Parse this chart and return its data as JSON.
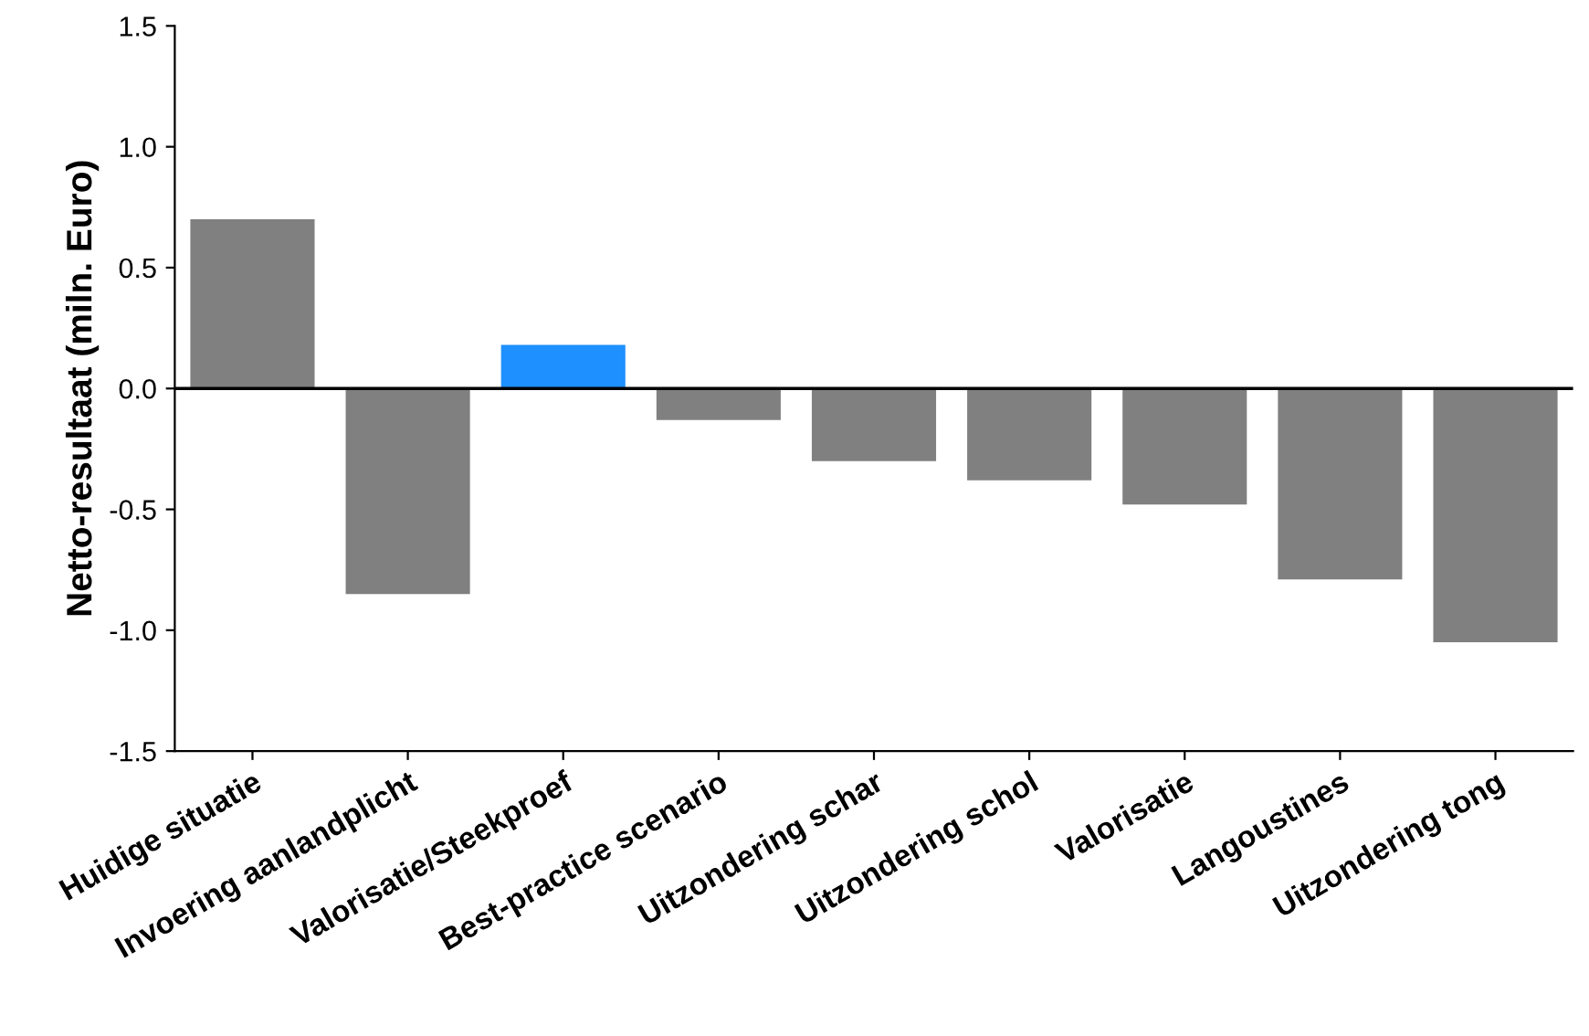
{
  "chart_data": {
    "type": "bar",
    "ylabel": "Netto-resultaat (miln. Euro)",
    "categories": [
      "Huidige situatie",
      "Invoering aanlandplicht",
      "Valorisatie/Steekproef",
      "Best-practice scenario",
      "Uitzondering schar",
      "Uitzondering schol",
      "Valorisatie",
      "Langoustines",
      "Uitzondering tong"
    ],
    "values": [
      0.7,
      -0.85,
      0.18,
      -0.13,
      -0.3,
      -0.38,
      -0.48,
      -0.79,
      -1.05
    ],
    "colors": [
      "#808080",
      "#808080",
      "#1e90ff",
      "#808080",
      "#808080",
      "#808080",
      "#808080",
      "#808080",
      "#808080"
    ],
    "ylim": [
      -1.5,
      1.5
    ],
    "yticks": [
      {
        "value": -1.5,
        "label": "-1.5"
      },
      {
        "value": -1.0,
        "label": "-1.0"
      },
      {
        "value": -0.5,
        "label": "-0.5"
      },
      {
        "value": 0,
        "label": "0.0"
      },
      {
        "value": 0.5,
        "label": "0.5"
      },
      {
        "value": 1.0,
        "label": "1.0"
      },
      {
        "value": 1.5,
        "label": "1.5"
      }
    ],
    "ref_lines": [
      {
        "axis": "y",
        "value": 0,
        "color": "#000000"
      }
    ],
    "grid": false,
    "legend": false
  }
}
